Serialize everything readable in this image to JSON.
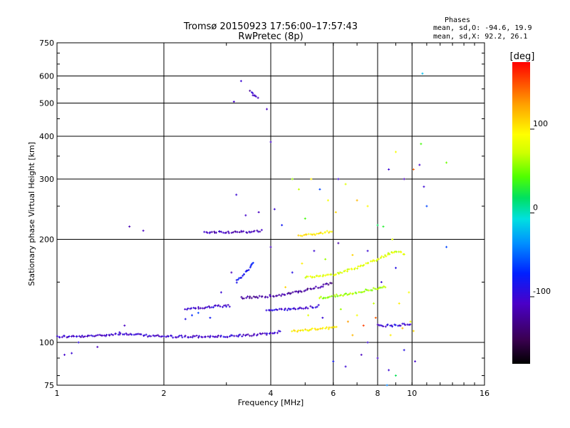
{
  "chart_data": {
    "type": "scatter",
    "title": "Tromsø 20150923 17:56:00–17:57:43",
    "subtitle": "RwPretec (8p)",
    "xlabel": "Frequency [MHz]",
    "ylabel": "Stationary phase Virtual Height [km]",
    "x_scale": "log",
    "y_scale": "log",
    "xlim": [
      1,
      16
    ],
    "ylim": [
      75,
      750
    ],
    "x_ticks": [
      "1",
      "2",
      "4",
      "6",
      "8",
      "10",
      "16"
    ],
    "x_tick_values": [
      1,
      2,
      4,
      6,
      8,
      10,
      16
    ],
    "y_ticks": [
      "75",
      "100",
      "200",
      "300",
      "400",
      "500",
      "600",
      "750"
    ],
    "y_tick_values": [
      75,
      100,
      200,
      300,
      400,
      500,
      600,
      750
    ],
    "grid": true,
    "stats": {
      "heading": "Phases",
      "line_o": "mean, sd,O: -94.6, 19.9",
      "line_x": "mean, sd,X:  92.2, 26.1"
    },
    "colorbar": {
      "label": "[deg]",
      "range": [
        -180,
        180
      ],
      "ticks": [
        "100",
        "0",
        "-100"
      ],
      "tick_values": [
        100,
        0,
        -100
      ]
    },
    "traces": [
      {
        "x": [
          1.0,
          1.2,
          1.5,
          2.0,
          3.0,
          4.0,
          4.3
        ],
        "y": [
          104,
          104,
          106,
          104,
          104,
          106,
          108
        ],
        "phase": -105
      },
      {
        "x": [
          2.6,
          3.0,
          3.4,
          3.8
        ],
        "y": [
          210,
          210,
          210,
          212
        ],
        "phase": -110
      },
      {
        "x": [
          3.3,
          3.8,
          4.4,
          5.0,
          5.6,
          6.0
        ],
        "y": [
          135,
          136,
          138,
          142,
          146,
          150
        ],
        "phase": -125
      },
      {
        "x": [
          2.3,
          2.7,
          3.1
        ],
        "y": [
          125,
          127,
          128
        ],
        "phase": -100
      },
      {
        "x": [
          3.9,
          4.4,
          5.0,
          5.5
        ],
        "y": [
          124,
          125,
          126,
          128
        ],
        "phase": -100
      },
      {
        "x": [
          4.6,
          5.2,
          5.8,
          6.2
        ],
        "y": [
          108,
          109,
          110,
          112
        ],
        "phase": 100
      },
      {
        "x": [
          4.8,
          5.5,
          6.0
        ],
        "y": [
          205,
          208,
          212
        ],
        "phase": 105
      },
      {
        "x": [
          5.0,
          6.0,
          7.0,
          8.0,
          9.0,
          9.6
        ],
        "y": [
          155,
          158,
          165,
          175,
          185,
          180
        ],
        "phase": 80
      },
      {
        "x": [
          8.0,
          9.0,
          9.5,
          10.0
        ],
        "y": [
          112,
          112,
          113,
          112
        ],
        "phase": -100
      },
      {
        "x": [
          5.5,
          6.5,
          7.5,
          8.5
        ],
        "y": [
          135,
          138,
          142,
          146
        ],
        "phase": 60
      },
      {
        "x": [
          3.2,
          3.4,
          3.6
        ],
        "y": [
          150,
          160,
          172
        ],
        "phase": -80
      },
      {
        "x": [
          3.5,
          3.6,
          3.7
        ],
        "y": [
          540,
          525,
          515
        ],
        "phase": -110
      }
    ],
    "points": [
      {
        "x": 1.05,
        "y": 92,
        "phase": -105
      },
      {
        "x": 1.1,
        "y": 93,
        "phase": -100
      },
      {
        "x": 1.3,
        "y": 97,
        "phase": -110
      },
      {
        "x": 1.15,
        "y": 100,
        "phase": -95
      },
      {
        "x": 1.5,
        "y": 107,
        "phase": -100
      },
      {
        "x": 1.55,
        "y": 112,
        "phase": -110
      },
      {
        "x": 1.6,
        "y": 218,
        "phase": -115
      },
      {
        "x": 1.75,
        "y": 212,
        "phase": -110
      },
      {
        "x": 2.3,
        "y": 117,
        "phase": -90
      },
      {
        "x": 2.4,
        "y": 120,
        "phase": -70
      },
      {
        "x": 2.5,
        "y": 122,
        "phase": -60
      },
      {
        "x": 2.7,
        "y": 118,
        "phase": -80
      },
      {
        "x": 2.9,
        "y": 140,
        "phase": -100
      },
      {
        "x": 3.1,
        "y": 160,
        "phase": -110
      },
      {
        "x": 3.3,
        "y": 580,
        "phase": -100
      },
      {
        "x": 3.15,
        "y": 505,
        "phase": -105
      },
      {
        "x": 3.9,
        "y": 480,
        "phase": -110
      },
      {
        "x": 4.0,
        "y": 385,
        "phase": -105
      },
      {
        "x": 3.2,
        "y": 270,
        "phase": -100
      },
      {
        "x": 3.4,
        "y": 235,
        "phase": -105
      },
      {
        "x": 3.7,
        "y": 240,
        "phase": -110
      },
      {
        "x": 4.1,
        "y": 245,
        "phase": -100
      },
      {
        "x": 4.0,
        "y": 190,
        "phase": -110
      },
      {
        "x": 4.3,
        "y": 220,
        "phase": -80
      },
      {
        "x": 4.6,
        "y": 300,
        "phase": 60
      },
      {
        "x": 4.8,
        "y": 280,
        "phase": 70
      },
      {
        "x": 5.0,
        "y": 230,
        "phase": 40
      },
      {
        "x": 5.2,
        "y": 300,
        "phase": 100
      },
      {
        "x": 5.5,
        "y": 280,
        "phase": -60
      },
      {
        "x": 5.8,
        "y": 260,
        "phase": 90
      },
      {
        "x": 6.1,
        "y": 240,
        "phase": 110
      },
      {
        "x": 6.5,
        "y": 290,
        "phase": 80
      },
      {
        "x": 7.0,
        "y": 260,
        "phase": 120
      },
      {
        "x": 7.5,
        "y": 250,
        "phase": 95
      },
      {
        "x": 8.0,
        "y": 220,
        "phase": 20
      },
      {
        "x": 8.3,
        "y": 218,
        "phase": 30
      },
      {
        "x": 8.6,
        "y": 320,
        "phase": -100
      },
      {
        "x": 9.0,
        "y": 360,
        "phase": 90
      },
      {
        "x": 9.5,
        "y": 300,
        "phase": -110
      },
      {
        "x": 10.1,
        "y": 320,
        "phase": 150
      },
      {
        "x": 10.5,
        "y": 330,
        "phase": -105
      },
      {
        "x": 10.8,
        "y": 285,
        "phase": -100
      },
      {
        "x": 11.0,
        "y": 250,
        "phase": -60
      },
      {
        "x": 10.6,
        "y": 380,
        "phase": 40
      },
      {
        "x": 12.5,
        "y": 335,
        "phase": 50
      },
      {
        "x": 12.5,
        "y": 190,
        "phase": -60
      },
      {
        "x": 10.7,
        "y": 610,
        "phase": -20
      },
      {
        "x": 6.2,
        "y": 300,
        "phase": -100
      },
      {
        "x": 6.0,
        "y": 88,
        "phase": -80
      },
      {
        "x": 6.5,
        "y": 85,
        "phase": -100
      },
      {
        "x": 7.2,
        "y": 92,
        "phase": -110
      },
      {
        "x": 8.0,
        "y": 90,
        "phase": -105
      },
      {
        "x": 8.6,
        "y": 83,
        "phase": -100
      },
      {
        "x": 9.0,
        "y": 80,
        "phase": 20
      },
      {
        "x": 8.5,
        "y": 75,
        "phase": -40
      },
      {
        "x": 10.2,
        "y": 88,
        "phase": -105
      },
      {
        "x": 9.5,
        "y": 95,
        "phase": -90
      },
      {
        "x": 7.5,
        "y": 100,
        "phase": -100
      },
      {
        "x": 6.8,
        "y": 105,
        "phase": 120
      },
      {
        "x": 7.0,
        "y": 120,
        "phase": 90
      },
      {
        "x": 7.8,
        "y": 130,
        "phase": 70
      },
      {
        "x": 8.2,
        "y": 150,
        "phase": -100
      },
      {
        "x": 9.2,
        "y": 130,
        "phase": 100
      },
      {
        "x": 9.8,
        "y": 140,
        "phase": 90
      },
      {
        "x": 9.0,
        "y": 165,
        "phase": -90
      },
      {
        "x": 8.8,
        "y": 200,
        "phase": 80
      },
      {
        "x": 7.5,
        "y": 185,
        "phase": -100
      },
      {
        "x": 6.8,
        "y": 180,
        "phase": 110
      },
      {
        "x": 6.2,
        "y": 195,
        "phase": -120
      },
      {
        "x": 5.7,
        "y": 175,
        "phase": 60
      },
      {
        "x": 5.3,
        "y": 185,
        "phase": -100
      },
      {
        "x": 4.9,
        "y": 170,
        "phase": 100
      },
      {
        "x": 4.6,
        "y": 160,
        "phase": -90
      },
      {
        "x": 4.4,
        "y": 145,
        "phase": 110
      },
      {
        "x": 5.1,
        "y": 120,
        "phase": 80
      },
      {
        "x": 5.6,
        "y": 118,
        "phase": -100
      },
      {
        "x": 6.3,
        "y": 125,
        "phase": 60
      },
      {
        "x": 6.6,
        "y": 115,
        "phase": 130
      },
      {
        "x": 7.3,
        "y": 112,
        "phase": 160
      },
      {
        "x": 7.9,
        "y": 118,
        "phase": 150
      },
      {
        "x": 8.7,
        "y": 105,
        "phase": 100
      },
      {
        "x": 9.4,
        "y": 110,
        "phase": 120
      },
      {
        "x": 9.9,
        "y": 115,
        "phase": 90
      },
      {
        "x": 10.1,
        "y": 108,
        "phase": 110
      }
    ]
  }
}
